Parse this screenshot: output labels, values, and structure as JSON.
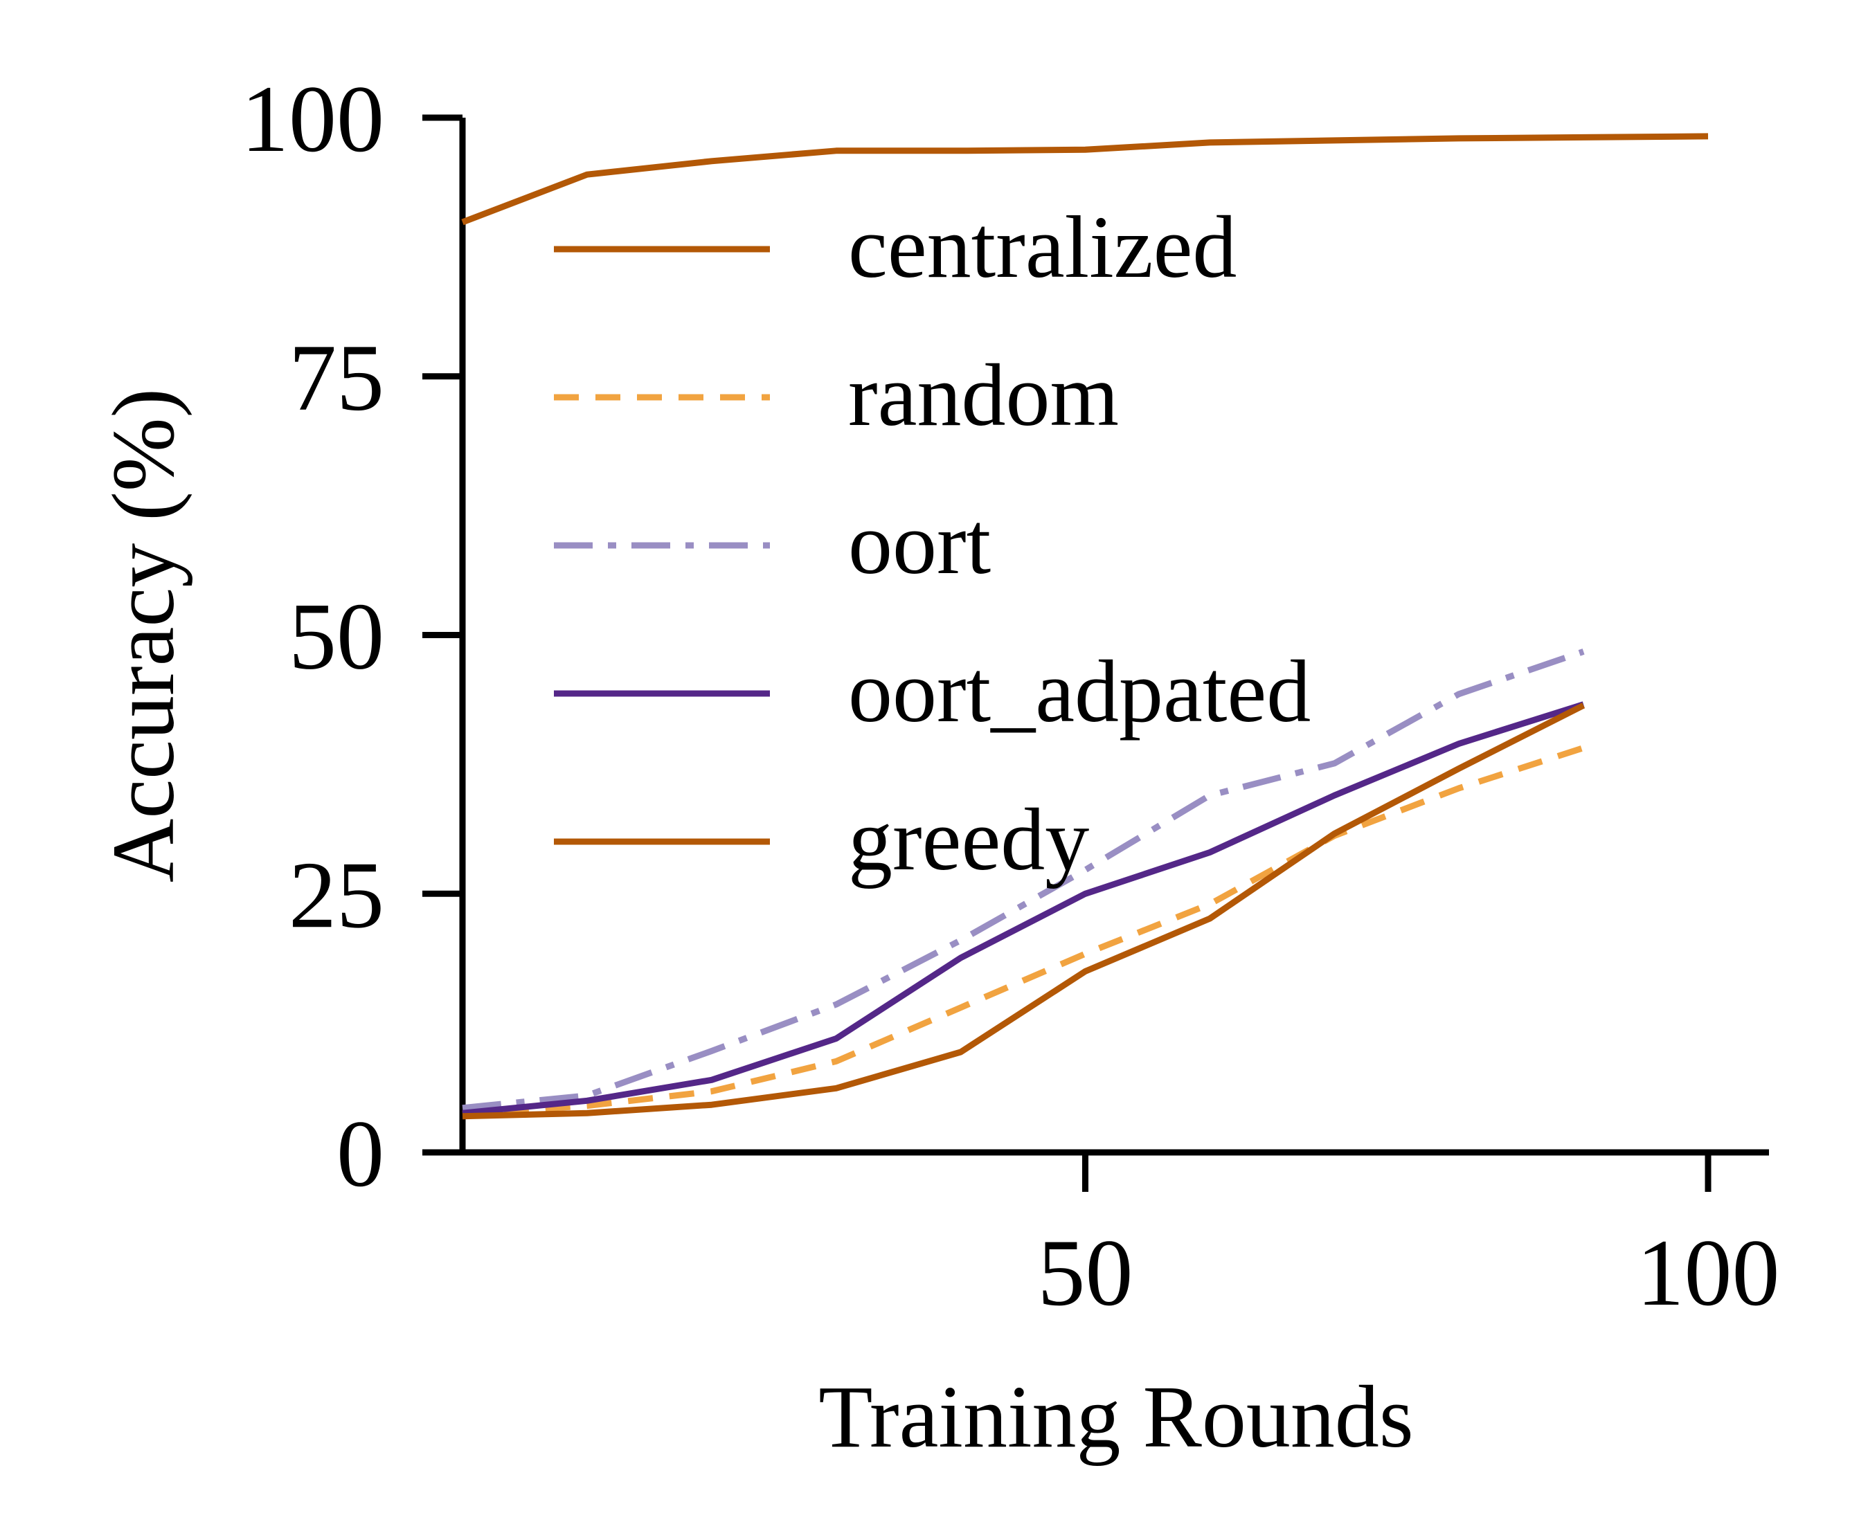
{
  "chart_data": {
    "type": "line",
    "xlabel": "Training Rounds",
    "ylabel": "Accuracy (%)",
    "xlim": [
      0,
      105
    ],
    "ylim": [
      0,
      100
    ],
    "xticks": [
      50,
      100
    ],
    "yticks": [
      0,
      25,
      50,
      75,
      100
    ],
    "grid": false,
    "legend_position": "top-left",
    "x": [
      0,
      10,
      20,
      30,
      40,
      50,
      60,
      70,
      80,
      90,
      100
    ],
    "series": [
      {
        "name": "centralized",
        "color": "#b35806",
        "dash": "solid",
        "values": [
          89.9,
          94.5,
          95.8,
          96.8,
          96.8,
          96.9,
          97.6,
          97.8,
          98.0,
          98.1,
          98.2
        ]
      },
      {
        "name": "random",
        "color": "#f1a340",
        "dash": "dashed",
        "values": [
          3.7,
          4.5,
          5.9,
          8.8,
          14.0,
          19.2,
          24.0,
          30.6,
          35.2,
          39.1,
          null
        ]
      },
      {
        "name": "oort",
        "color": "#998ec3",
        "dash": "dashdot",
        "values": [
          4.3,
          5.5,
          9.8,
          14.3,
          20.5,
          27.3,
          34.5,
          37.6,
          44.3,
          48.4,
          null
        ]
      },
      {
        "name": "oort_adpated",
        "color": "#542788",
        "dash": "solid",
        "values": [
          3.8,
          5.0,
          7.0,
          11.0,
          18.8,
          25.0,
          29.0,
          34.5,
          39.5,
          43.3,
          null
        ]
      },
      {
        "name": "greedy",
        "color": "#b35806",
        "dash": "solid",
        "values": [
          3.5,
          3.8,
          4.6,
          6.2,
          9.7,
          17.5,
          22.6,
          30.8,
          37.1,
          43.2,
          null
        ]
      }
    ]
  }
}
